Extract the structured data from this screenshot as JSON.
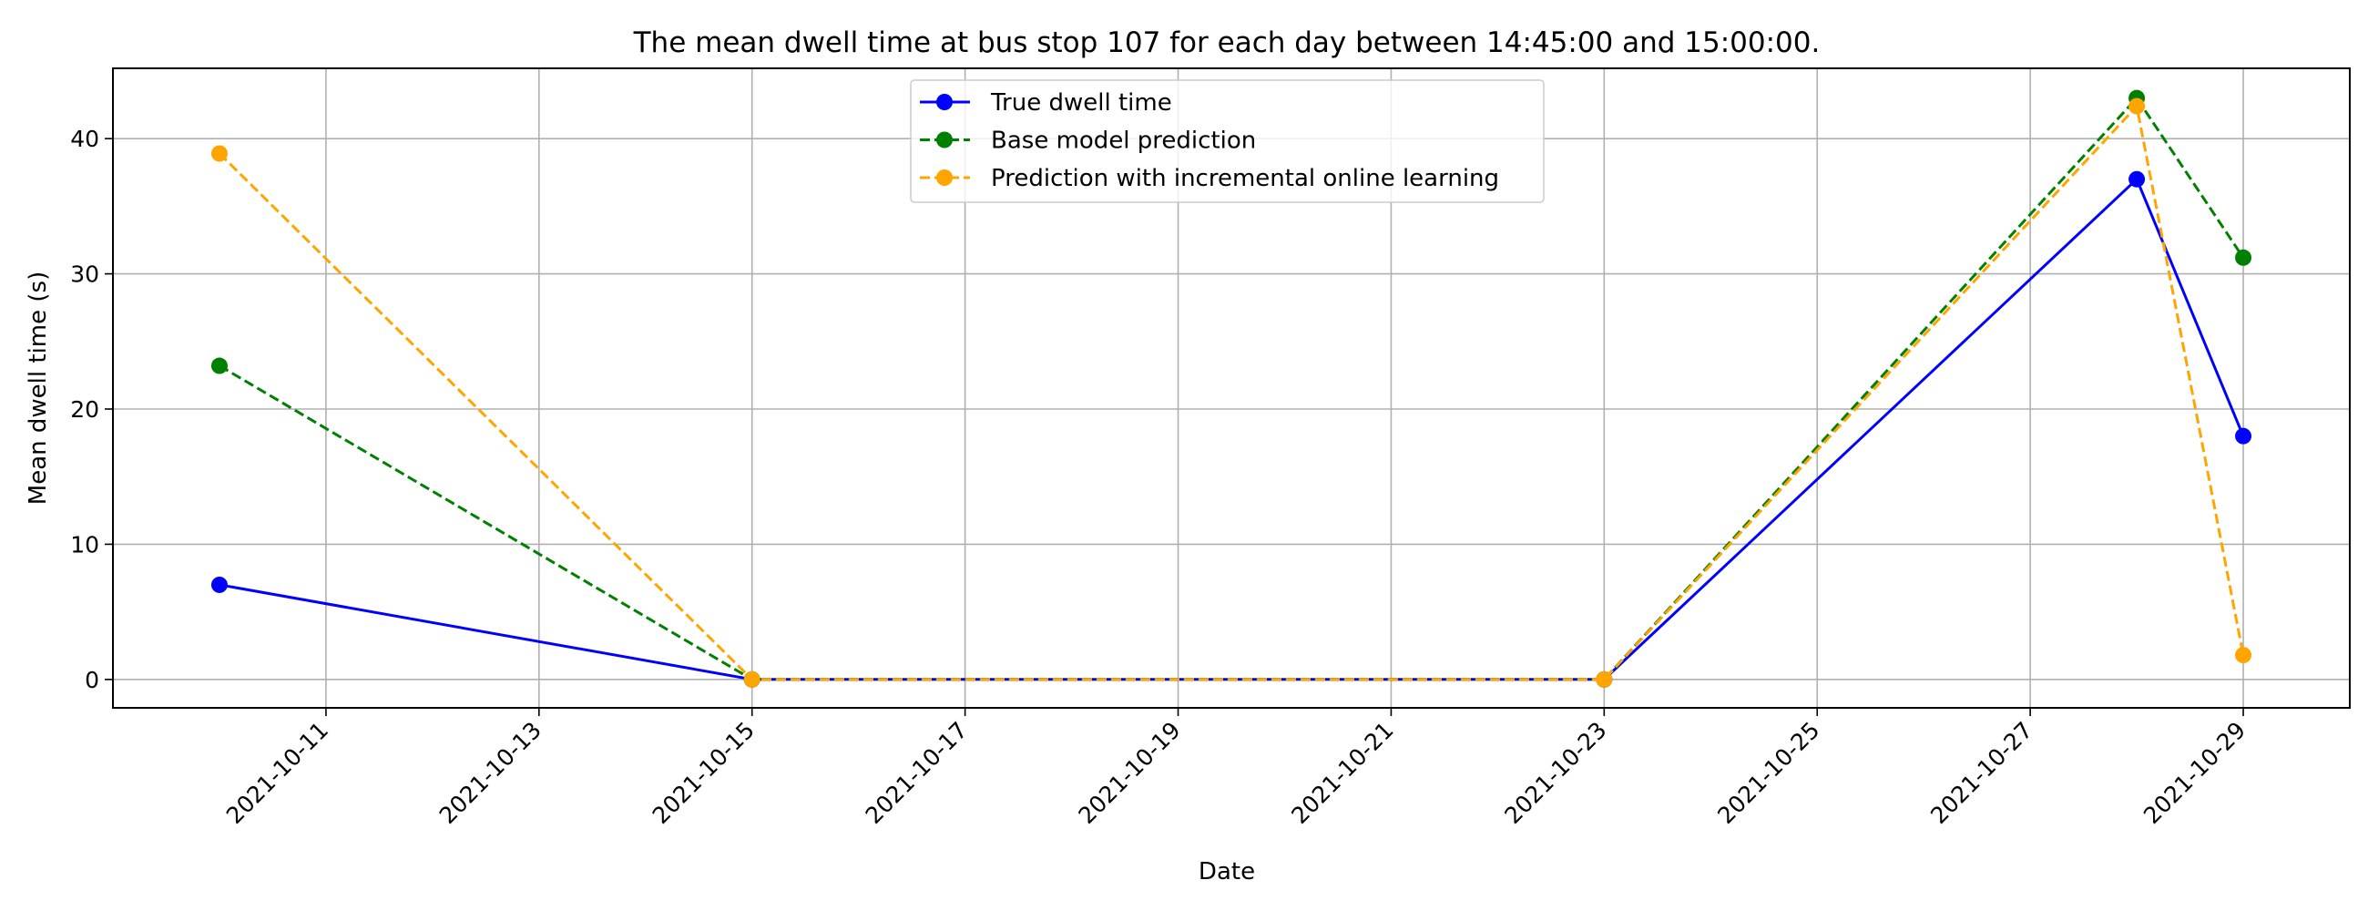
{
  "chart_data": {
    "type": "line",
    "title": "The mean dwell time at bus stop 107 for each day between 14:45:00 and 15:00:00.",
    "xlabel": "Date",
    "ylabel": "Mean dwell time (s)",
    "x": [
      "2021-10-10",
      "2021-10-15",
      "2021-10-23",
      "2021-10-28",
      "2021-10-29"
    ],
    "x_ticks": [
      "2021-10-11",
      "2021-10-13",
      "2021-10-15",
      "2021-10-17",
      "2021-10-19",
      "2021-10-21",
      "2021-10-23",
      "2021-10-25",
      "2021-10-27",
      "2021-10-29"
    ],
    "y_ticks": [
      0,
      10,
      20,
      30,
      40
    ],
    "xlim": [
      "2021-10-09",
      "2021-10-30"
    ],
    "ylim": [
      -2.1,
      45.2
    ],
    "grid": true,
    "legend_position": "top-center",
    "series": [
      {
        "name": "True dwell time",
        "values": [
          7,
          0,
          0,
          37,
          18
        ],
        "color": "#0000ff",
        "style": "solid"
      },
      {
        "name": "Base model prediction",
        "values": [
          23.2,
          0,
          0,
          43,
          31.2
        ],
        "color": "#008000",
        "style": "dashed"
      },
      {
        "name": "Prediction with incremental online learning",
        "values": [
          38.9,
          0,
          0,
          42.4,
          1.8
        ],
        "color": "#ffa500",
        "style": "dashed"
      }
    ]
  }
}
